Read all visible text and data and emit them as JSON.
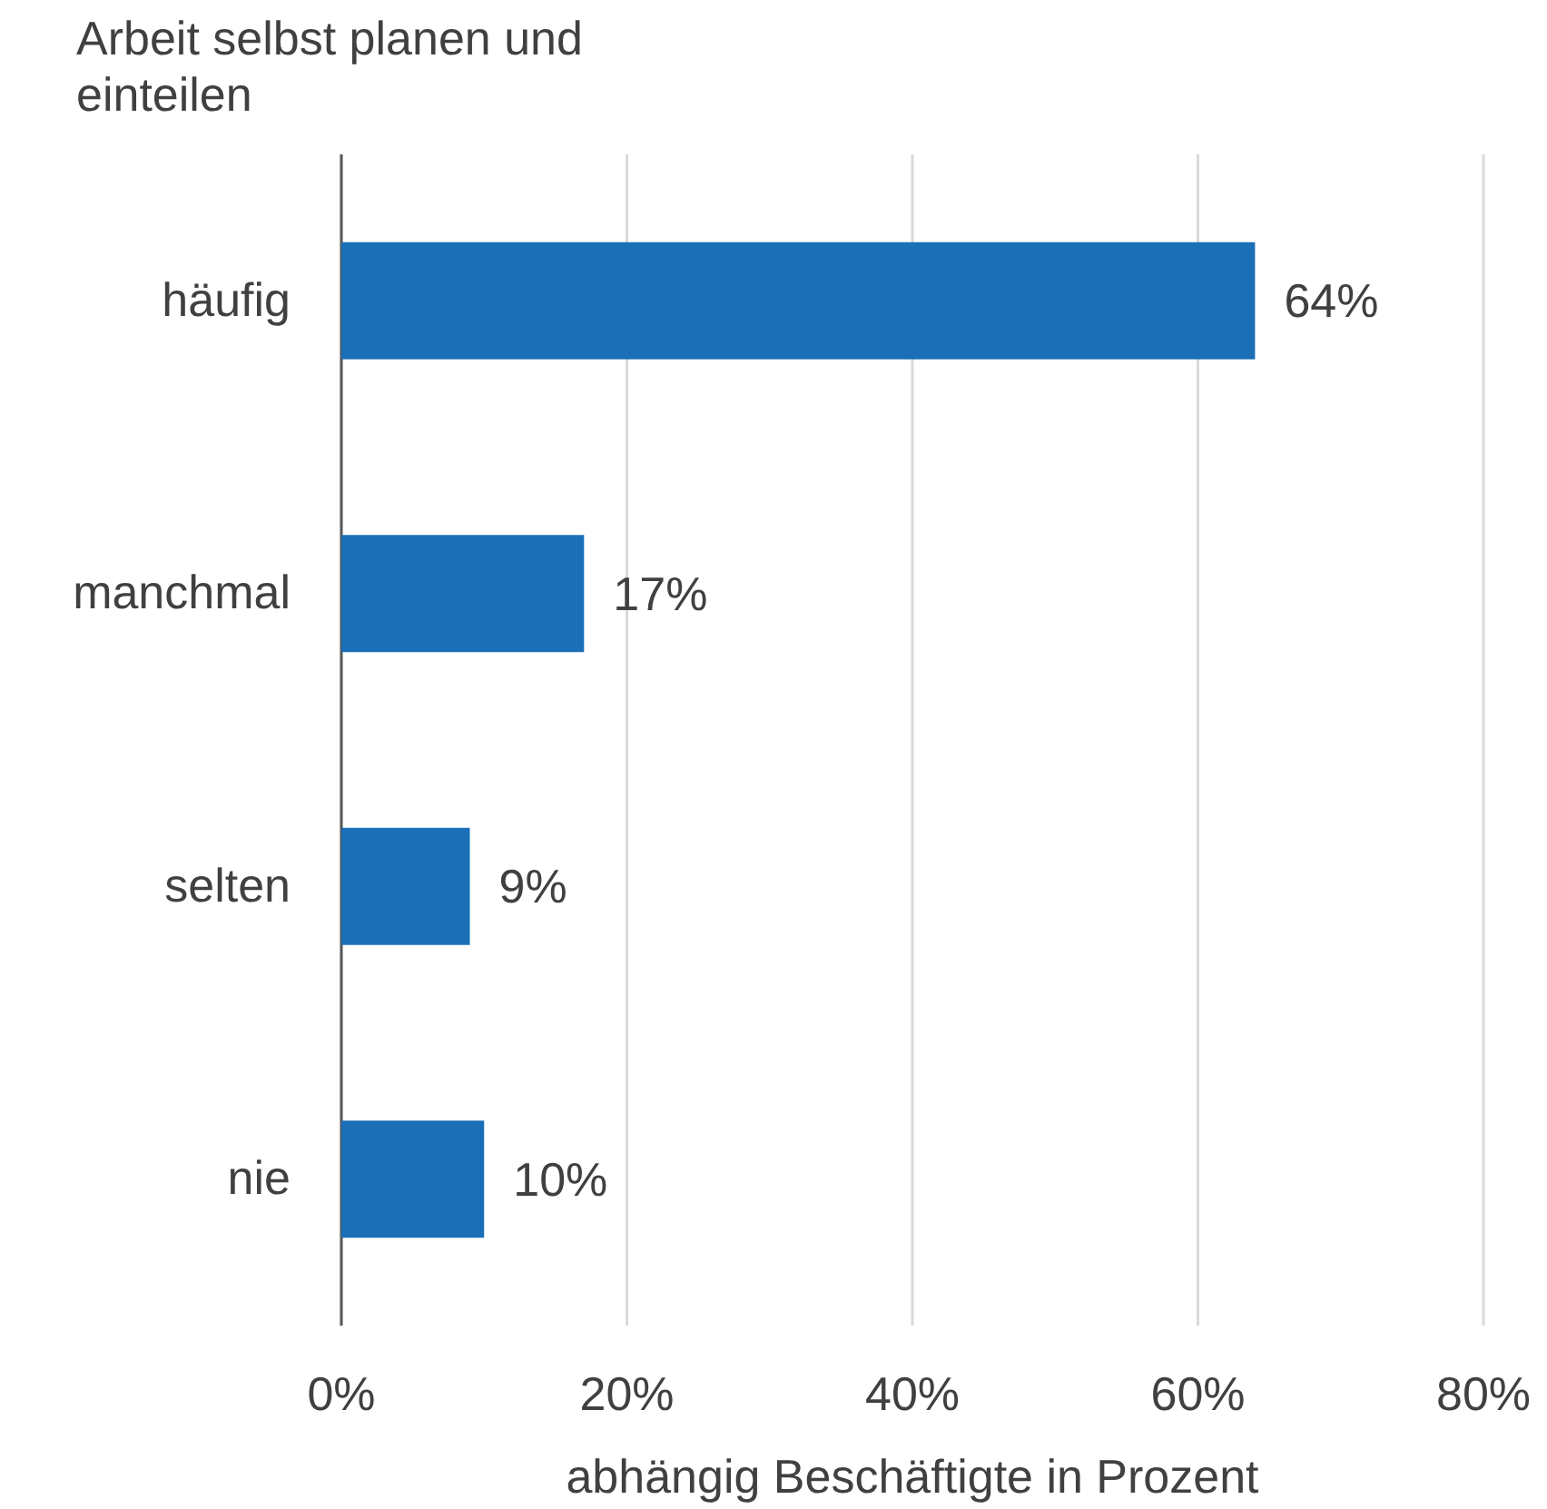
{
  "chart_data": {
    "type": "bar",
    "orientation": "horizontal",
    "title": "Arbeit selbst planen und einteilen",
    "xlabel": "abhängig Beschäftigte in Prozent",
    "categories": [
      "häufig",
      "manchmal",
      "selten",
      "nie"
    ],
    "values": [
      64,
      17,
      9,
      10
    ],
    "color": "#1a6fb7",
    "value_labels": [
      "64%",
      "17%",
      "9%",
      "10%"
    ],
    "xlim": [
      0,
      80
    ],
    "xticks": [
      {
        "value": 0,
        "label": "0%"
      },
      {
        "value": 20,
        "label": "20%"
      },
      {
        "value": 40,
        "label": "40%"
      },
      {
        "value": 60,
        "label": "60%"
      },
      {
        "value": 80,
        "label": "80%"
      }
    ],
    "grid": "x"
  }
}
